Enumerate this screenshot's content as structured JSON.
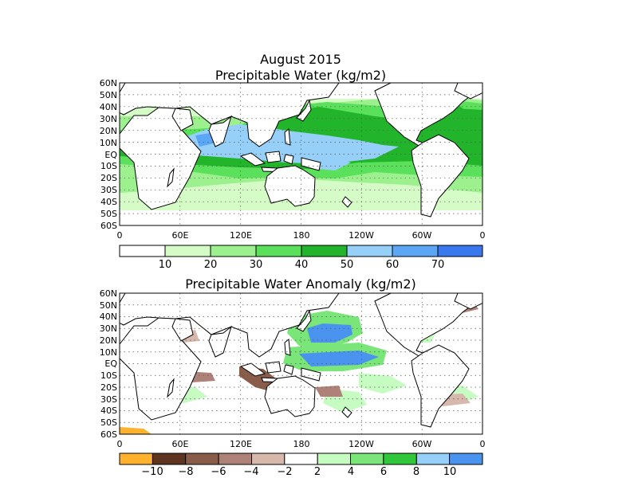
{
  "figure": {
    "title": "August 2015",
    "colors": {
      "pw": [
        "#ffffff",
        "#d5fcc6",
        "#9cf08e",
        "#5ae05a",
        "#22b42a",
        "#96d0f8",
        "#5ba6f5",
        "#3a78ef"
      ],
      "anom": [
        "#ffb22d",
        "#5c3420",
        "#8a5c4a",
        "#ae8278",
        "#d6b8ac",
        "#ffffff",
        "#c6fcc2",
        "#7ae67a",
        "#30c83a",
        "#96d0f8",
        "#4a94f0"
      ]
    }
  },
  "panels": {
    "pw": {
      "title": "Precipitable Water (kg/m2)",
      "lat_ticks": [
        "60N",
        "50N",
        "40N",
        "30N",
        "20N",
        "10N",
        "EQ",
        "10S",
        "20S",
        "30S",
        "40S",
        "50S",
        "60S"
      ],
      "lon_ticks": [
        "0",
        "60E",
        "120E",
        "180",
        "120W",
        "60W",
        "0"
      ],
      "colorbar_labels": [
        "10",
        "20",
        "30",
        "40",
        "50",
        "60",
        "70"
      ]
    },
    "anom": {
      "title": "Precipitable Water Anomaly (kg/m2)",
      "lat_ticks": [
        "60N",
        "50N",
        "40N",
        "30N",
        "20N",
        "10N",
        "EQ",
        "10S",
        "20S",
        "30S",
        "40S",
        "50S",
        "60S"
      ],
      "lon_ticks": [
        "0",
        "60E",
        "120E",
        "180",
        "120W",
        "60W",
        "0"
      ],
      "colorbar_labels": [
        "−10",
        "−8",
        "−6",
        "−4",
        "−2",
        "2",
        "4",
        "6",
        "8",
        "10"
      ]
    }
  }
}
